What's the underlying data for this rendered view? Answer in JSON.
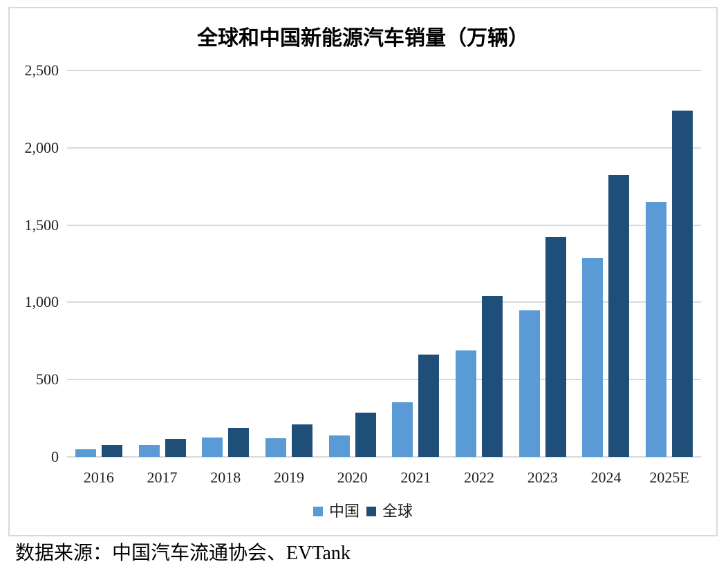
{
  "source_note": "数据来源：中国汽车流通协会、EVTank",
  "chart_data": {
    "type": "bar",
    "title": "全球和中国新能源汽车销量（万辆）",
    "categories": [
      "2016",
      "2017",
      "2018",
      "2019",
      "2020",
      "2021",
      "2022",
      "2023",
      "2024",
      "2025E"
    ],
    "series": [
      {
        "name": "中国",
        "color": "#5B9BD5",
        "values": [
          50,
          78,
          126,
          121,
          137,
          352,
          689,
          950,
          1287,
          1650
        ]
      },
      {
        "name": "全球",
        "color": "#1F4E79",
        "values": [
          77,
          117,
          190,
          212,
          285,
          660,
          1040,
          1420,
          1824,
          2240
        ]
      }
    ],
    "ylim": [
      0,
      2500
    ],
    "yticks": [
      0,
      500,
      1000,
      1500,
      2000,
      2500
    ],
    "ytick_labels": [
      "0",
      "500",
      "1,000",
      "1,500",
      "2,000",
      "2,500"
    ],
    "grid": "horizontal",
    "gridline_color": "#D9D9D9",
    "frame_border_color": "#D9D9D9",
    "legend_position": "bottom"
  }
}
